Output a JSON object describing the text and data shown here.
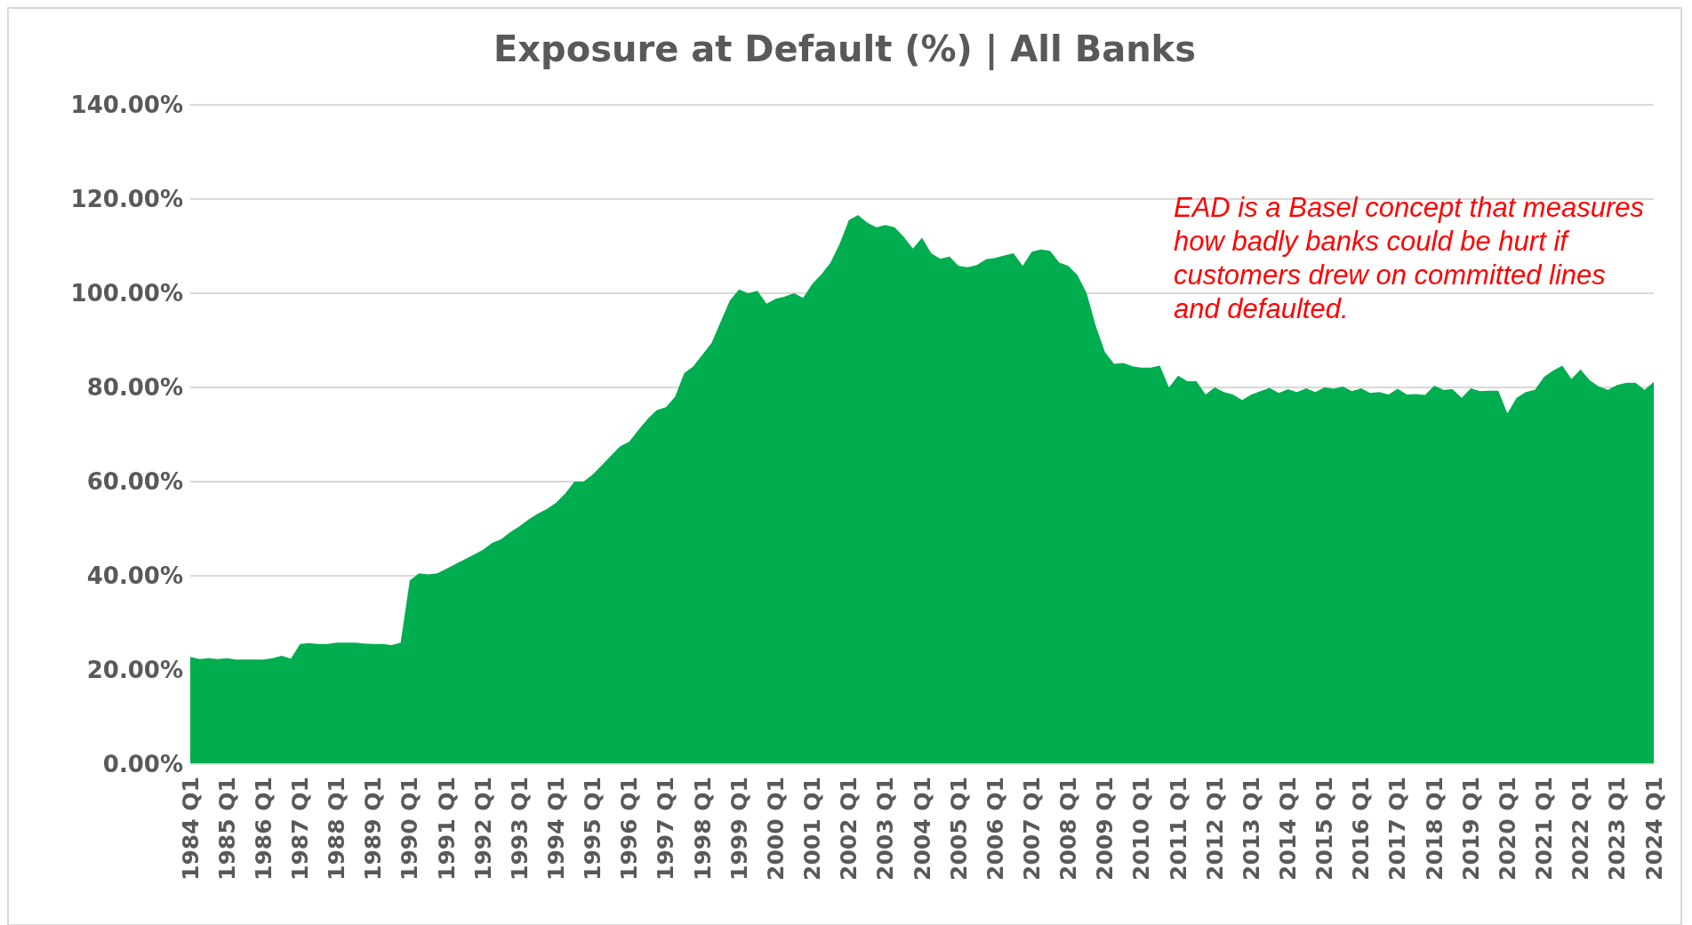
{
  "chart_data": {
    "type": "area",
    "title": "Exposure at Default (%) | All Banks",
    "categories": [
      "1984 Q1",
      null,
      null,
      null,
      "1985 Q1",
      null,
      null,
      null,
      "1986 Q1",
      null,
      null,
      null,
      "1987 Q1",
      null,
      null,
      null,
      "1988 Q1",
      null,
      null,
      null,
      "1989 Q1",
      null,
      null,
      null,
      "1990 Q1",
      null,
      null,
      null,
      "1991 Q1",
      null,
      null,
      null,
      "1992 Q1",
      null,
      null,
      null,
      "1993 Q1",
      null,
      null,
      null,
      "1994 Q1",
      null,
      null,
      null,
      "1995 Q1",
      null,
      null,
      null,
      "1996 Q1",
      null,
      null,
      null,
      "1997 Q1",
      null,
      null,
      null,
      "1998 Q1",
      null,
      null,
      null,
      "1999 Q1",
      null,
      null,
      null,
      "2000 Q1",
      null,
      null,
      null,
      "2001 Q1",
      null,
      null,
      null,
      "2002 Q1",
      null,
      null,
      null,
      "2003 Q1",
      null,
      null,
      null,
      "2004 Q1",
      null,
      null,
      null,
      "2005 Q1",
      null,
      null,
      null,
      "2006 Q1",
      null,
      null,
      null,
      "2007 Q1",
      null,
      null,
      null,
      "2008 Q1",
      null,
      null,
      null,
      "2009 Q1",
      null,
      null,
      null,
      "2010 Q1",
      null,
      null,
      null,
      "2011 Q1",
      null,
      null,
      null,
      "2012 Q1",
      null,
      null,
      null,
      "2013 Q1",
      null,
      null,
      null,
      "2014 Q1",
      null,
      null,
      null,
      "2015 Q1",
      null,
      null,
      null,
      "2016 Q1",
      null,
      null,
      null,
      "2017 Q1",
      null,
      null,
      null,
      "2018 Q1",
      null,
      null,
      null,
      "2019 Q1",
      null,
      null,
      null,
      "2020 Q1",
      null,
      null,
      null,
      "2021 Q1",
      null,
      null,
      null,
      "2022 Q1",
      null,
      null,
      null,
      "2023 Q1",
      null,
      null,
      null,
      "2024 Q1"
    ],
    "values": [
      22.8,
      22.3,
      22.5,
      22.3,
      22.5,
      22.2,
      22.2,
      22.2,
      22.2,
      22.5,
      23.0,
      22.4,
      25.5,
      25.7,
      25.5,
      25.5,
      25.8,
      25.8,
      25.8,
      25.6,
      25.5,
      25.5,
      25.3,
      25.8,
      39.0,
      40.5,
      40.3,
      40.5,
      41.5,
      42.5,
      43.5,
      44.5,
      45.5,
      47.0,
      47.8,
      49.3,
      50.5,
      52.0,
      53.2,
      54.2,
      55.5,
      57.5,
      60.0,
      60.0,
      61.5,
      63.5,
      65.5,
      67.5,
      68.5,
      71.0,
      73.3,
      75.2,
      75.8,
      78.0,
      83.0,
      84.5,
      87.0,
      89.5,
      94.0,
      98.5,
      100.8,
      100.0,
      100.5,
      97.8,
      98.8,
      99.3,
      100.0,
      99.0,
      102.0,
      104.0,
      106.5,
      110.5,
      115.5,
      116.6,
      115.0,
      114.0,
      114.5,
      114.0,
      112.0,
      109.5,
      111.8,
      108.5,
      107.3,
      107.8,
      105.8,
      105.5,
      106.0,
      107.2,
      107.5,
      108.0,
      108.5,
      105.8,
      108.8,
      109.3,
      109.0,
      106.5,
      105.8,
      103.8,
      100.0,
      93.0,
      87.5,
      85.0,
      85.2,
      84.5,
      84.2,
      84.2,
      84.6,
      80.0,
      82.5,
      81.3,
      81.3,
      78.5,
      80.0,
      79.0,
      78.5,
      77.3,
      78.5,
      79.2,
      79.9,
      78.8,
      79.6,
      79.0,
      79.8,
      79.0,
      80.0,
      79.7,
      80.2,
      79.2,
      79.8,
      78.8,
      79.0,
      78.5,
      79.7,
      78.5,
      78.6,
      78.4,
      80.4,
      79.5,
      79.6,
      77.8,
      79.8,
      79.2,
      79.3,
      79.3,
      74.5,
      77.8,
      79.0,
      79.5,
      82.2,
      83.6,
      84.6,
      81.8,
      83.8,
      81.5,
      80.2,
      79.5,
      80.5,
      81.0,
      81.0,
      79.5,
      81.2
    ],
    "color": "#00ad4f",
    "ylim": [
      0,
      140
    ],
    "yticks": [
      {
        "value": 0,
        "label": "0.00%"
      },
      {
        "value": 20,
        "label": "20.00%"
      },
      {
        "value": 40,
        "label": "40.00%"
      },
      {
        "value": 60,
        "label": "60.00%"
      },
      {
        "value": 80,
        "label": "80.00%"
      },
      {
        "value": 100,
        "label": "100.00%"
      },
      {
        "value": 120,
        "label": "120.00%"
      },
      {
        "value": 140,
        "label": "140.00%"
      }
    ],
    "grid": "y",
    "annotations": [
      "EAD is a Basel concept that measures how badly banks could be hurt if customers drew on committed lines and defaulted."
    ]
  }
}
